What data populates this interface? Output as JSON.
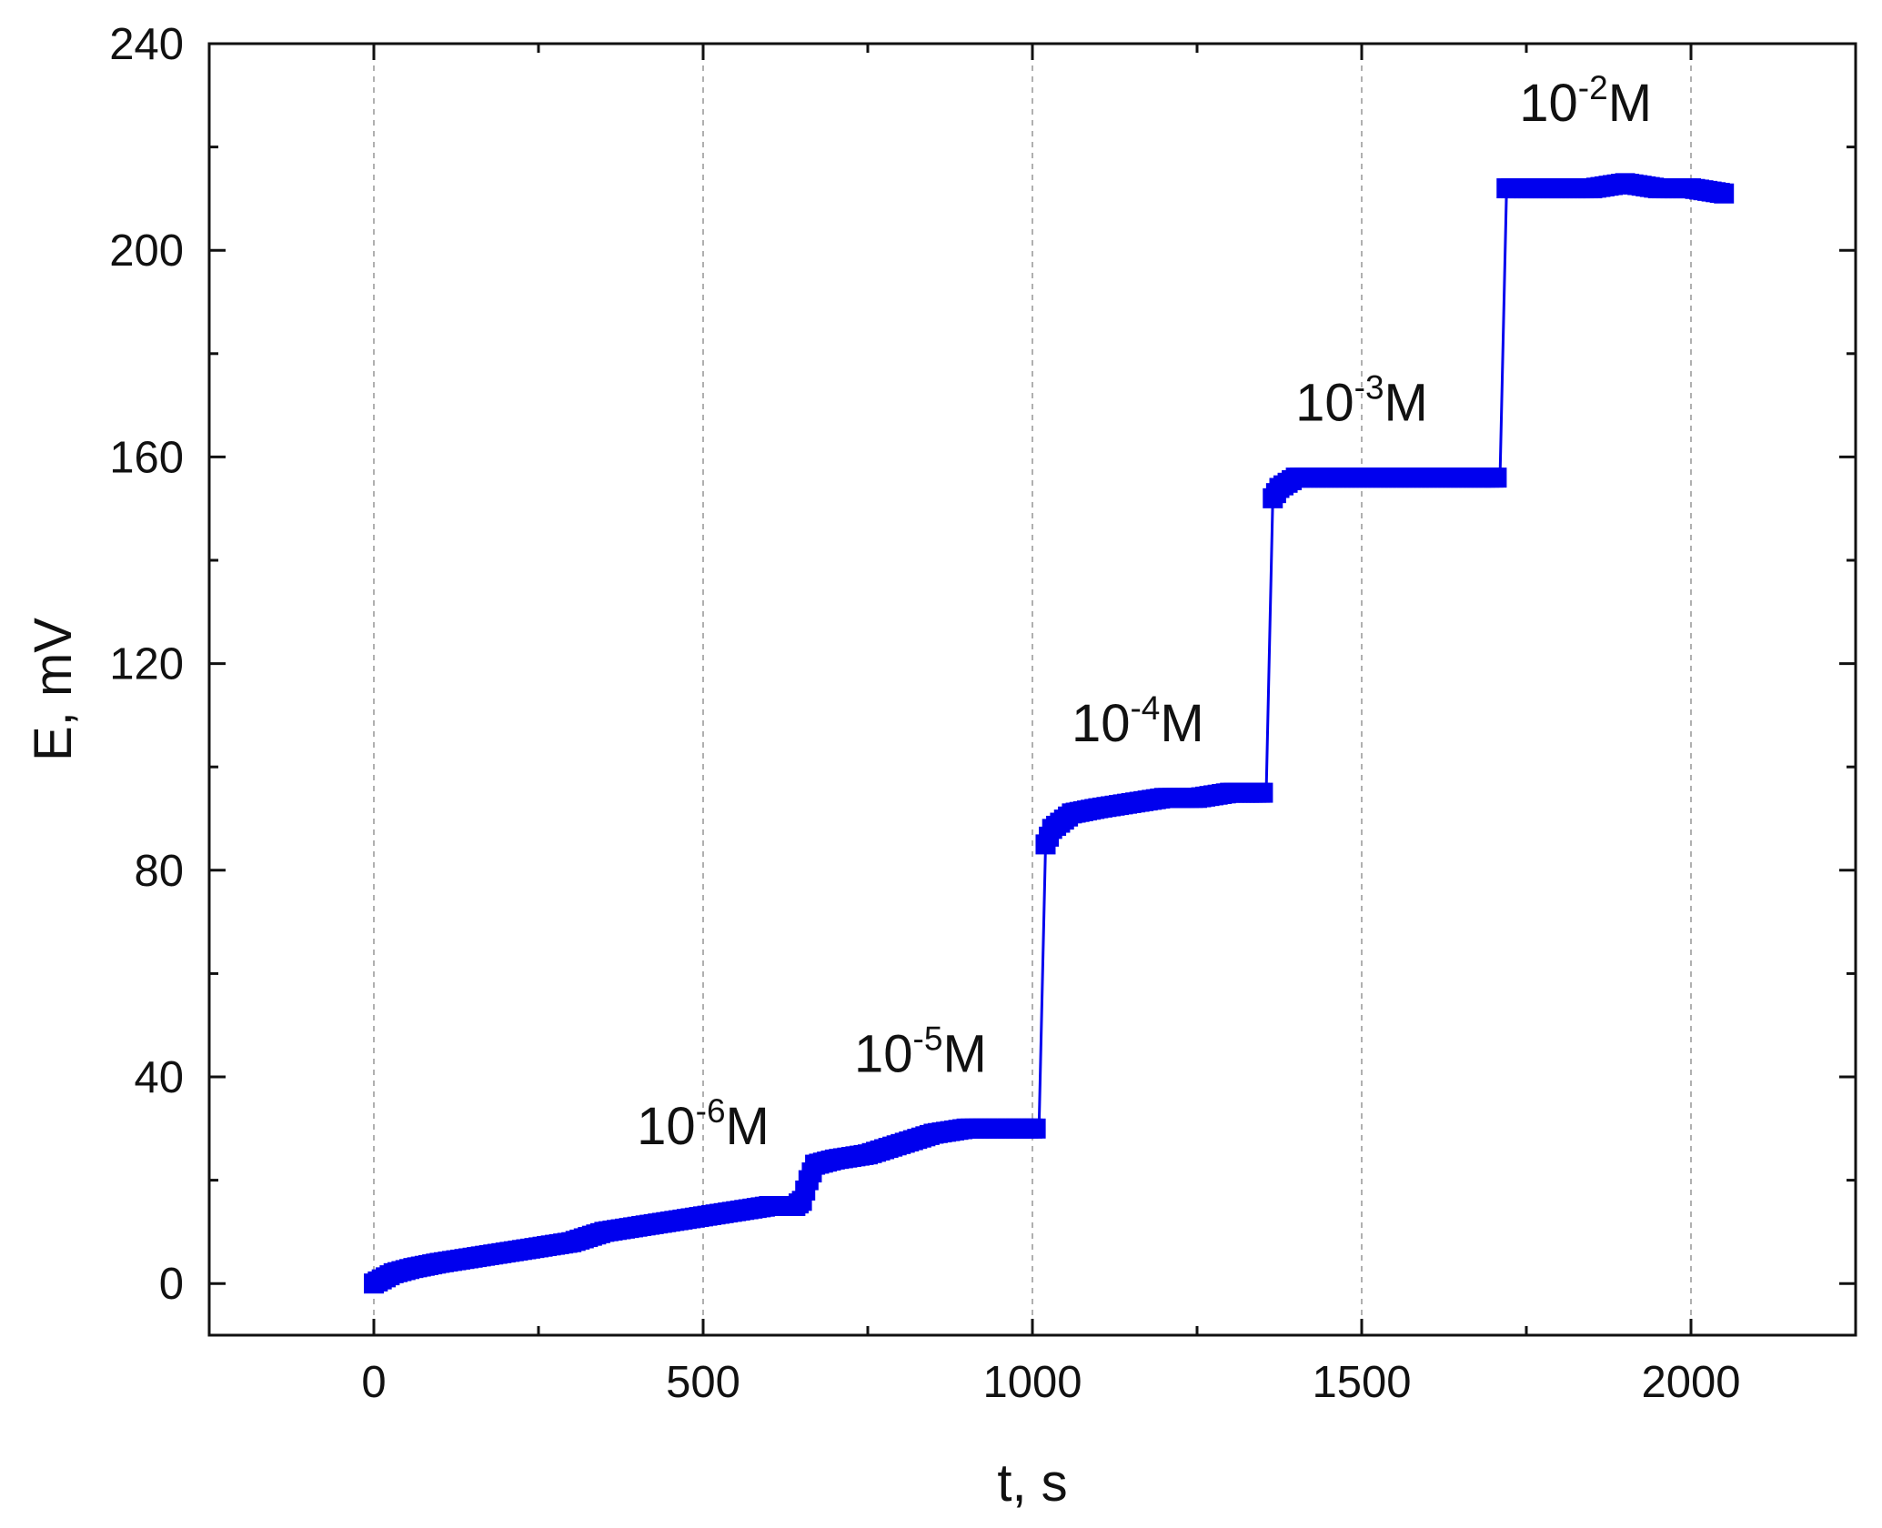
{
  "chart_data": {
    "type": "line",
    "title": "",
    "xlabel": "t, s",
    "ylabel": "E, mV",
    "xlim": [
      -250,
      2250
    ],
    "ylim": [
      -10,
      240
    ],
    "xticks": [
      0,
      500,
      1000,
      1500,
      2000
    ],
    "yticks": [
      0,
      40,
      80,
      120,
      160,
      200,
      240
    ],
    "x_tick_labels": [
      "0",
      "500",
      "1000",
      "1500",
      "2000"
    ],
    "y_tick_labels": [
      "0",
      "40",
      "80",
      "120",
      "160",
      "200",
      "240"
    ],
    "grid": {
      "x": true,
      "y": false,
      "style": "dashed"
    },
    "legend": "none",
    "series": [
      {
        "color": "#0000ee",
        "marker": "square",
        "x": [
          0,
          30,
          60,
          100,
          150,
          200,
          250,
          300,
          350,
          400,
          450,
          500,
          550,
          600,
          640,
          650,
          660,
          670,
          700,
          750,
          800,
          850,
          900,
          950,
          1000,
          1010,
          1020,
          1030,
          1060,
          1100,
          1150,
          1200,
          1250,
          1300,
          1340,
          1355,
          1365,
          1375,
          1400,
          1450,
          1500,
          1550,
          1600,
          1650,
          1700,
          1710,
          1720,
          1740,
          1800,
          1850,
          1900,
          1950,
          2000,
          2050
        ],
        "y": [
          0,
          2,
          3,
          4,
          5,
          6,
          7,
          8,
          10,
          11,
          12,
          13,
          14,
          15,
          15,
          16,
          20,
          23,
          24,
          25,
          27,
          29,
          30,
          30,
          30,
          30,
          85,
          88,
          91,
          92,
          93,
          94,
          94,
          95,
          95,
          95,
          152,
          154,
          156,
          156,
          156,
          156,
          156,
          156,
          156,
          156,
          212,
          212,
          212,
          212,
          213,
          212,
          212,
          211
        ]
      }
    ],
    "annotations": [
      {
        "base": "10",
        "exp": "-6",
        "unit": "M",
        "x": 500,
        "y": 27
      },
      {
        "base": "10",
        "exp": "-5",
        "unit": "M",
        "x": 830,
        "y": 41
      },
      {
        "base": "10",
        "exp": "-4",
        "unit": "M",
        "x": 1160,
        "y": 105
      },
      {
        "base": "10",
        "exp": "-3",
        "unit": "M",
        "x": 1500,
        "y": 167
      },
      {
        "base": "10",
        "exp": "-2",
        "unit": "M",
        "x": 1840,
        "y": 225
      }
    ]
  }
}
